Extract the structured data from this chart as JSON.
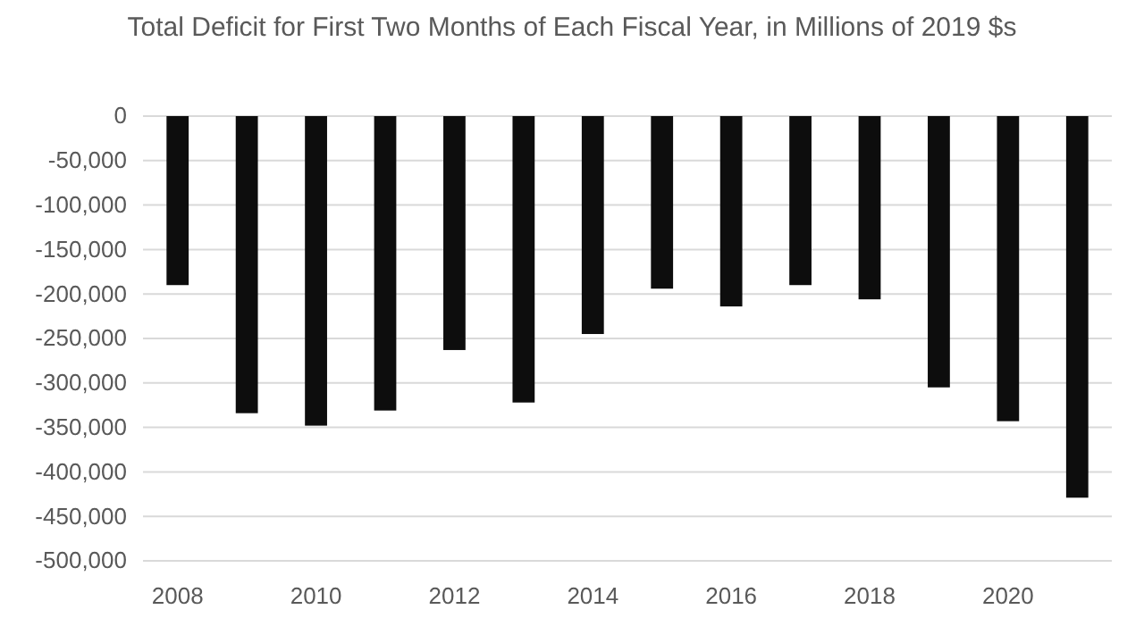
{
  "chart_data": {
    "type": "bar",
    "title": "Total Deficit for First Two Months of Each Fiscal Year, in Millions of 2019 $s",
    "categories": [
      "2008",
      null,
      "2010",
      null,
      "2012",
      null,
      "2014",
      null,
      "2016",
      null,
      "2018",
      null,
      "2020",
      null
    ],
    "values": [
      -190000,
      -334000,
      -348000,
      -331000,
      -263000,
      -322000,
      -245000,
      -194000,
      -214000,
      -190000,
      -206000,
      -305000,
      -343000,
      -429000
    ],
    "color": "#0d0d0d",
    "ylim": [
      -500000,
      0
    ],
    "yticks": [
      {
        "value": 0,
        "label": "0"
      },
      {
        "value": -50000,
        "label": "-50,000"
      },
      {
        "value": -100000,
        "label": "-100,000"
      },
      {
        "value": -150000,
        "label": "-150,000"
      },
      {
        "value": -200000,
        "label": "-200,000"
      },
      {
        "value": -250000,
        "label": "-250,000"
      },
      {
        "value": -300000,
        "label": "-300,000"
      },
      {
        "value": -350000,
        "label": "-350,000"
      },
      {
        "value": -400000,
        "label": "-400,000"
      },
      {
        "value": -450000,
        "label": "-450,000"
      },
      {
        "value": -500000,
        "label": "-500,000"
      }
    ],
    "grid": "y"
  }
}
